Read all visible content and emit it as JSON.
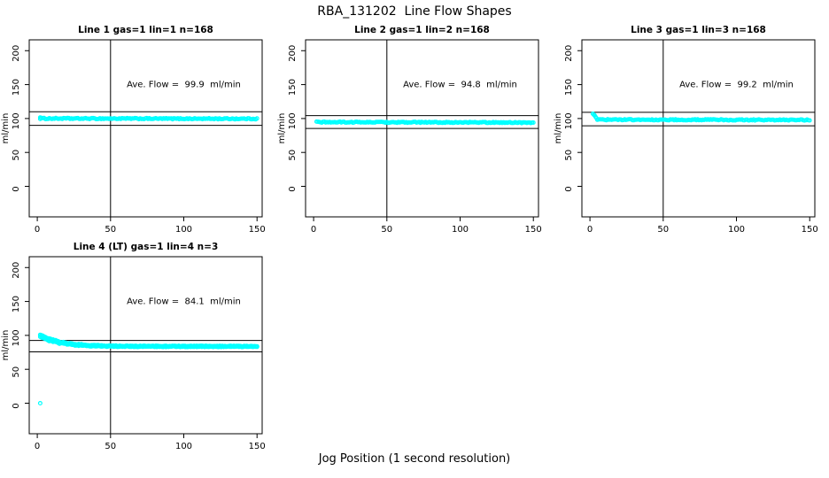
{
  "page": {
    "title": "RBA_131202  Line Flow Shapes",
    "xlabel": "Jog Position (1 second resolution)"
  },
  "colors": {
    "points": "#00ffff",
    "lines": "#000000",
    "background": "#ffffff"
  },
  "chart_data": [
    {
      "type": "scatter",
      "title": "Line 1 gas=1 lin=1 n=168",
      "annotation": "Ave. Flow =  99.9  ml/min",
      "annotation_xy": [
        100,
        150
      ],
      "ave_flow": 99.9,
      "ylabel": "ml/min",
      "xticks": [
        0,
        50,
        100,
        150
      ],
      "yticks": [
        0,
        50,
        100,
        150,
        200
      ],
      "xlim": [
        -5.5,
        153.5
      ],
      "ylim": [
        -45,
        216
      ],
      "vline_x": 50,
      "hlines": [
        109.9,
        89.9
      ],
      "grid": false,
      "series": {
        "name": "flow",
        "kind": "flat",
        "x_start": 2,
        "x_end": 150,
        "n": 168,
        "baseline": 100.0,
        "drift": -0.4,
        "noise": 0.8,
        "start_spike": [
          [
            2,
            101.5
          ],
          [
            2.6,
            101.0
          ]
        ],
        "outliers": []
      }
    },
    {
      "type": "scatter",
      "title": "Line 2 gas=1 lin=2 n=168",
      "annotation": "Ave. Flow =  94.8  ml/min",
      "annotation_xy": [
        100,
        150
      ],
      "ave_flow": 94.8,
      "ylabel": "ml/min",
      "xticks": [
        0,
        50,
        100,
        150
      ],
      "yticks": [
        0,
        50,
        100,
        150,
        200
      ],
      "xlim": [
        -5.5,
        153.5
      ],
      "ylim": [
        -45,
        216
      ],
      "vline_x": 50,
      "hlines": [
        104.3,
        85.3
      ],
      "grid": false,
      "series": {
        "name": "flow",
        "kind": "flat",
        "x_start": 2,
        "x_end": 150,
        "n": 168,
        "baseline": 94.7,
        "drift": -0.7,
        "noise": 0.8,
        "start_spike": [],
        "outliers": []
      }
    },
    {
      "type": "scatter",
      "title": "Line 3 gas=1 lin=3 n=168",
      "annotation": "Ave. Flow =  99.2  ml/min",
      "annotation_xy": [
        100,
        150
      ],
      "ave_flow": 99.2,
      "ylabel": "ml/min",
      "xticks": [
        0,
        50,
        100,
        150
      ],
      "yticks": [
        0,
        50,
        100,
        150,
        200
      ],
      "xlim": [
        -5.5,
        153.5
      ],
      "ylim": [
        -45,
        216
      ],
      "vline_x": 50,
      "hlines": [
        109.1,
        89.3
      ],
      "grid": false,
      "series": {
        "name": "flow",
        "kind": "flat",
        "x_start": 5,
        "x_end": 150,
        "n": 164,
        "baseline": 98.3,
        "drift": -0.5,
        "noise": 0.8,
        "start_spike": [
          [
            2,
            107
          ],
          [
            2.7,
            105.5
          ],
          [
            3.2,
            104.5
          ],
          [
            3.8,
            102.5
          ],
          [
            4.5,
            100.5
          ]
        ],
        "outliers": []
      }
    },
    {
      "type": "scatter",
      "title": "Line 4 (LT) gas=1 lin=4 n=3",
      "annotation": "Ave. Flow =  84.1  ml/min",
      "annotation_xy": [
        100,
        150
      ],
      "ave_flow": 84.1,
      "ylabel": "ml/min",
      "xticks": [
        0,
        50,
        100,
        150
      ],
      "yticks": [
        0,
        50,
        100,
        150,
        200
      ],
      "xlim": [
        -5.5,
        153.5
      ],
      "ylim": [
        -45,
        216
      ],
      "vline_x": 50,
      "hlines": [
        92.5,
        75.7
      ],
      "grid": false,
      "series": {
        "name": "flow",
        "kind": "decay",
        "x_start": 2,
        "x_end": 150,
        "n": 170,
        "runs": 3,
        "base": 83.8,
        "amp": 16,
        "tau": 13,
        "noise": 0.9,
        "start_spike": [],
        "outliers": [
          [
            2,
            0
          ]
        ]
      }
    }
  ]
}
